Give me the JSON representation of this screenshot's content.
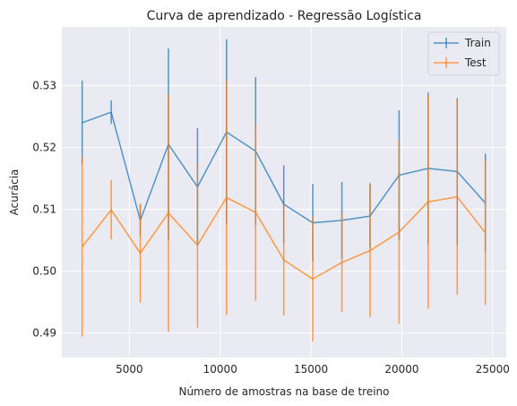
{
  "chart_data": {
    "type": "line",
    "title": "Curva de aprendizado - Regressão Logística",
    "xlabel": "Número de amostras na base de treino",
    "ylabel": "Acurácia",
    "xlim": [
      1280,
      25750
    ],
    "ylim": [
      0.486,
      0.5395
    ],
    "xticks": [
      5000,
      10000,
      15000,
      20000,
      25000
    ],
    "yticks": [
      0.49,
      0.5,
      0.51,
      0.52,
      0.53
    ],
    "ytick_labels": [
      "0.49",
      "0.50",
      "0.51",
      "0.52",
      "0.53"
    ],
    "grid": true,
    "legend_position": "top-right",
    "x": [
      2400,
      4000,
      5600,
      7150,
      8750,
      10350,
      11950,
      13500,
      15100,
      16700,
      18250,
      19850,
      21450,
      23050,
      24600
    ],
    "series": [
      {
        "name": "Train",
        "color": "#1f77b4",
        "values": [
          0.524,
          0.5257,
          0.5082,
          0.5205,
          0.5136,
          0.5225,
          0.5194,
          0.5108,
          0.5078,
          0.5082,
          0.5089,
          0.5155,
          0.5166,
          0.5161,
          0.511
        ],
        "errors": [
          0.0068,
          0.0019,
          0.0026,
          0.0155,
          0.0095,
          0.015,
          0.012,
          0.0063,
          0.0063,
          0.0062,
          0.0053,
          0.0105,
          0.0123,
          0.0119,
          0.008
        ]
      },
      {
        "name": "Test",
        "color": "#ff7f0e",
        "values": [
          0.5039,
          0.5099,
          0.5029,
          0.5094,
          0.5042,
          0.5119,
          0.5095,
          0.5018,
          0.4987,
          0.5014,
          0.5033,
          0.5063,
          0.5112,
          0.512,
          0.5062
        ],
        "errors": [
          0.0145,
          0.0048,
          0.008,
          0.0192,
          0.0133,
          0.019,
          0.0143,
          0.009,
          0.0101,
          0.008,
          0.0108,
          0.0148,
          0.0173,
          0.0158,
          0.0117
        ]
      }
    ]
  }
}
